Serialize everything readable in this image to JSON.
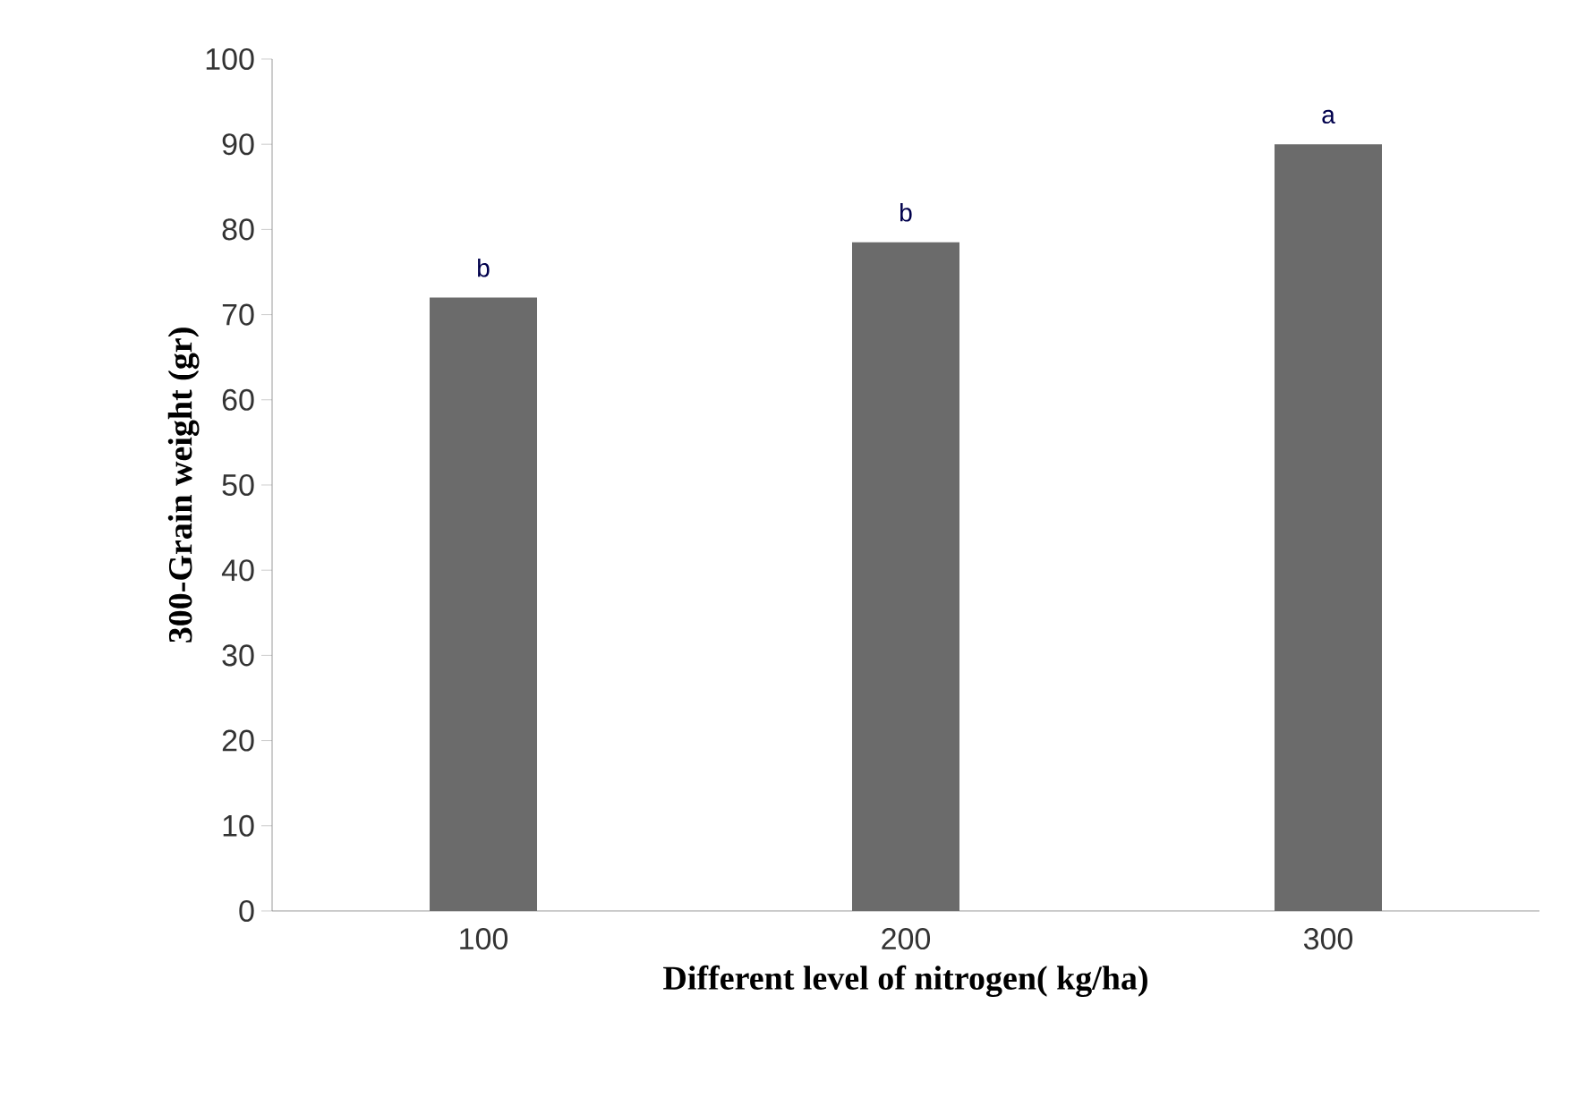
{
  "chart_data": {
    "type": "bar",
    "xlabel": "Different level of nitrogen( kg/ha)",
    "ylabel": "300-Grain weight (gr)",
    "categories": [
      "100",
      "200",
      "300"
    ],
    "values": [
      72,
      78.5,
      90
    ],
    "color": "#6b6b6b",
    "ylim": [
      0,
      100
    ],
    "yticks": [
      0,
      10,
      20,
      30,
      40,
      50,
      60,
      70,
      80,
      90,
      100
    ],
    "annotations": [
      {
        "text": "b",
        "x": "100",
        "y": 72
      },
      {
        "text": "b",
        "x": "200",
        "y": 78.5
      },
      {
        "text": "a",
        "x": "300",
        "y": 90
      }
    ]
  }
}
